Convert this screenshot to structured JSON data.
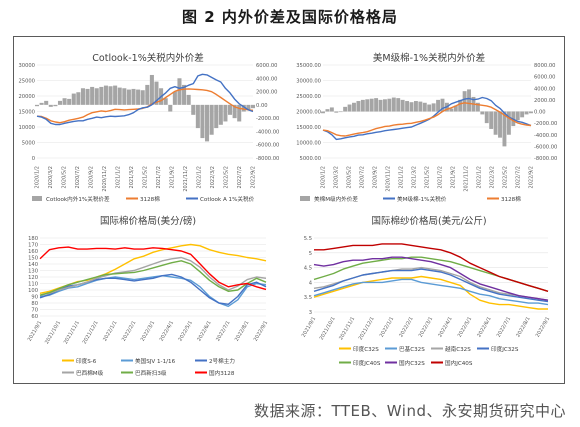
{
  "figure": {
    "title": "图 2  内外价差及国际价格格局",
    "source": "数据来源：TTEB、Wind、永安期货研究中心"
  },
  "colors": {
    "orange": "#ed7d31",
    "blue": "#4472c4",
    "gray": "#a5a5a5",
    "yellow": "#ffc000",
    "lightblue": "#5b9bd5",
    "green": "#70ad47",
    "darkred": "#c00000",
    "red": "#ff0000",
    "purple": "#7030a0"
  },
  "chart_data": [
    {
      "type": "line",
      "title": "Cotlook-1%关税内外价差",
      "x_labels": [
        "2020/1/2",
        "2020/3/2",
        "2020/5/2",
        "2020/7/2",
        "2020/9/2",
        "2020/11/2",
        "2021/1/2",
        "2021/3/2",
        "2021/5/2",
        "2021/7/2",
        "2021/9/2",
        "2021/11/2",
        "2022/1/2",
        "2022/3/2",
        "2022/5/2",
        "2022/7/2",
        "2022/9/2"
      ],
      "y_left": {
        "ticks": [
          "0",
          "5000",
          "10000",
          "15000",
          "20000",
          "25000",
          "30000"
        ],
        "range": [
          0,
          30000
        ]
      },
      "y_right": {
        "ticks": [
          "-8000.00",
          "-6000.00",
          "-4000.00",
          "-2000.00",
          "0.00",
          "2000.00",
          "4000.00",
          "6000.00"
        ],
        "range": [
          -8000,
          6000
        ]
      },
      "series": [
        {
          "name": "Cotlook内外1%关税价差",
          "kind": "area",
          "axis": "right",
          "color": "gray",
          "values": [
            -200,
            300,
            600,
            -300,
            -200,
            600,
            1000,
            900,
            1700,
            1900,
            2500,
            2400,
            2700,
            2500,
            2700,
            2900,
            2800,
            2900,
            2600,
            2500,
            2300,
            2400,
            2300,
            2200,
            3000,
            4500,
            3500,
            2500,
            1000,
            -1000,
            2000,
            4000,
            3000,
            1500,
            -1500,
            -3500,
            -5000,
            -5500,
            -4500,
            -3500,
            -3000,
            -2500,
            -1500,
            -2000,
            -2500,
            -1000,
            -800,
            -500
          ]
        },
        {
          "name": "3128棉",
          "kind": "line",
          "axis": "left",
          "color": "orange",
          "values": [
            13500,
            13400,
            12800,
            12000,
            11600,
            11400,
            11700,
            12200,
            12500,
            12800,
            13200,
            14000,
            14600,
            14900,
            15200,
            15000,
            15300,
            15700,
            15600,
            15500,
            15600,
            15700,
            15800,
            16000,
            16500,
            17500,
            18000,
            18500,
            19500,
            20500,
            21500,
            22000,
            22200,
            22300,
            22200,
            22100,
            22000,
            21800,
            21400,
            20500,
            19500,
            18500,
            17500,
            16500,
            16000,
            15800,
            15500,
            15400
          ]
        },
        {
          "name": "Cotlook A 1%关税价",
          "kind": "line",
          "axis": "left",
          "color": "blue",
          "values": [
            13500,
            13200,
            12500,
            11200,
            10800,
            10800,
            11200,
            11500,
            11800,
            12000,
            12000,
            12500,
            12800,
            13200,
            13000,
            13300,
            13500,
            13400,
            13500,
            13600,
            14000,
            14600,
            15600,
            16200,
            16400,
            17200,
            18500,
            19800,
            21000,
            22500,
            23000,
            22500,
            22800,
            23500,
            24000,
            26500,
            27000,
            26800,
            26000,
            25200,
            24500,
            22500,
            21000,
            19000,
            17500,
            16500,
            15500,
            15000
          ]
        }
      ]
    },
    {
      "type": "line",
      "title": "美M级棉-1%关税内外价差",
      "x_labels": [
        "2020/1/2",
        "2020/3/2",
        "2020/5/2",
        "2020/7/2",
        "2020/9/2",
        "2020/11/2",
        "2021/1/2",
        "2021/3/2",
        "2021/5/2",
        "2021/7/2",
        "2021/9/2",
        "2021/11/2",
        "2022/1/2",
        "2022/3/2",
        "2022/5/2",
        "2022/7/2",
        "2022/9/2"
      ],
      "y_left": {
        "ticks": [
          "5000.00",
          "10000.00",
          "15000.00",
          "20000.00",
          "25000.00",
          "30000.00",
          "35000.00"
        ],
        "range": [
          5000,
          35000
        ]
      },
      "y_right": {
        "ticks": [
          "-8000.00",
          "-6000.00",
          "-4000.00",
          "-2000.00",
          "0.00",
          "2000.00",
          "4000.00",
          "6000.00",
          "8000.00"
        ],
        "range": [
          -8000,
          8000
        ]
      },
      "series": [
        {
          "name": "美棉M级内外价差",
          "kind": "area",
          "axis": "right",
          "color": "gray",
          "values": [
            -300,
            400,
            700,
            -200,
            -100,
            800,
            1200,
            1500,
            1800,
            2000,
            2100,
            2200,
            2300,
            2000,
            2100,
            2200,
            2400,
            2300,
            2000,
            1800,
            1600,
            1800,
            1700,
            1500,
            1200,
            1400,
            2000,
            2200,
            1500,
            500,
            1000,
            2000,
            3500,
            3800,
            2500,
            1500,
            -500,
            -2000,
            -3000,
            -4000,
            -4500,
            -6000,
            -4000,
            -2500,
            -1500,
            -1000,
            -500,
            -300
          ]
        },
        {
          "name": "美M级棉-1%关税价",
          "kind": "line",
          "axis": "left",
          "color": "blue",
          "values": [
            14000,
            13500,
            12500,
            11000,
            11200,
            11500,
            11800,
            12000,
            12400,
            12500,
            12800,
            13000,
            13300,
            13500,
            13800,
            14000,
            14200,
            14400,
            14600,
            14800,
            15000,
            15600,
            16200,
            16800,
            17500,
            18500,
            19800,
            21000,
            21500,
            22500,
            23000,
            23500,
            24000,
            24200,
            23800,
            24000,
            24500,
            24200,
            23500,
            22000,
            21000,
            19500,
            18200,
            17500,
            16800,
            16500,
            16000,
            15500
          ]
        },
        {
          "name": "3128棉",
          "kind": "line",
          "axis": "left",
          "color": "orange",
          "values": [
            14000,
            13800,
            13200,
            12500,
            12200,
            12100,
            12400,
            12700,
            13000,
            13200,
            13500,
            14000,
            14500,
            14800,
            15200,
            15300,
            15600,
            15800,
            15900,
            16100,
            16200,
            16500,
            16800,
            17200,
            17700,
            18200,
            19000,
            20000,
            20700,
            21200,
            21800,
            22500,
            22800,
            22600,
            22400,
            22200,
            22000,
            21800,
            21400,
            20600,
            19800,
            18800,
            17900,
            17000,
            16300,
            15900,
            15600,
            15500
          ]
        }
      ]
    },
    {
      "type": "line",
      "title": "国际棉价格局(美分/磅)",
      "x_labels": [
        "2021/9/1",
        "2021/10/1",
        "2021/11/1",
        "2021/12/1",
        "2022/1/1",
        "2022/2/1",
        "2022/3/1",
        "2022/4/1",
        "2022/5/1",
        "2022/6/1",
        "2022/7/1",
        "2022/8/1",
        "2022/9/1"
      ],
      "y_left": {
        "ticks": [
          "60",
          "70",
          "80",
          "90",
          "100",
          "110",
          "120",
          "130",
          "140",
          "150",
          "160",
          "170",
          "180"
        ],
        "range": [
          60,
          180
        ]
      },
      "legend_position": "bottom",
      "series": [
        {
          "name": "印度S-6",
          "color": "yellow",
          "values": [
            95,
            98,
            103,
            108,
            113,
            115,
            120,
            125,
            132,
            140,
            148,
            152,
            158,
            162,
            165,
            168,
            170,
            168,
            162,
            158,
            155,
            153,
            150,
            148,
            145
          ]
        },
        {
          "name": "美国SJV 1-1/16",
          "color": "lightblue",
          "values": [
            90,
            92,
            98,
            103,
            105,
            110,
            115,
            118,
            120,
            118,
            116,
            118,
            120,
            122,
            120,
            118,
            115,
            105,
            90,
            80,
            75,
            85,
            105,
            110,
            108
          ]
        },
        {
          "name": "2号棉主力",
          "color": "blue",
          "values": [
            88,
            93,
            100,
            106,
            108,
            112,
            116,
            118,
            118,
            116,
            114,
            116,
            118,
            122,
            124,
            120,
            112,
            100,
            88,
            80,
            78,
            90,
            108,
            112,
            105
          ]
        },
        {
          "name": "巴西棉M级",
          "color": "gray",
          "values": [
            92,
            95,
            100,
            104,
            108,
            112,
            118,
            122,
            126,
            128,
            130,
            135,
            140,
            145,
            148,
            150,
            145,
            135,
            120,
            108,
            100,
            106,
            116,
            120,
            118
          ]
        },
        {
          "name": "巴西新扫3级",
          "color": "green",
          "values": [
            92,
            96,
            102,
            108,
            112,
            116,
            120,
            124,
            125,
            126,
            127,
            130,
            134,
            138,
            142,
            145,
            140,
            128,
            115,
            105,
            98,
            100,
            110,
            118,
            112
          ]
        },
        {
          "name": "国内3128",
          "color": "red",
          "values": [
            148,
            162,
            165,
            166,
            163,
            163,
            164,
            164,
            163,
            165,
            163,
            163,
            165,
            164,
            162,
            160,
            155,
            140,
            125,
            112,
            105,
            108,
            110,
            105,
            101
          ]
        }
      ]
    },
    {
      "type": "line",
      "title": "国际棉纱价格局(美元/公斤)",
      "x_labels": [
        "2021/9/1",
        "2021/10/1",
        "2021/11/1",
        "2021/12/1",
        "2022/1/1",
        "2022/2/1",
        "2022/3/1",
        "2022/4/1",
        "2022/5/1",
        "2022/6/1",
        "2022/7/1",
        "2022/8/1",
        "2022/9/1"
      ],
      "y_left": {
        "ticks": [
          "3",
          "3.5",
          "4",
          "4.5",
          "5",
          "5.5"
        ],
        "range": [
          3,
          5.5
        ]
      },
      "legend_position": "bottom",
      "series": [
        {
          "name": "印度C32S",
          "color": "yellow",
          "values": [
            3.5,
            3.6,
            3.7,
            3.8,
            3.9,
            4.0,
            4.05,
            4.1,
            4.15,
            4.15,
            4.15,
            4.2,
            4.15,
            4.1,
            4.0,
            3.9,
            3.6,
            3.4,
            3.3,
            3.25,
            3.25,
            3.2,
            3.15,
            3.1,
            3.1
          ]
        },
        {
          "name": "巴基C32S",
          "color": "lightblue",
          "values": [
            3.55,
            3.65,
            3.75,
            3.85,
            3.95,
            4.0,
            4.0,
            4.0,
            4.05,
            4.1,
            4.1,
            4.0,
            3.95,
            3.9,
            3.85,
            3.8,
            3.7,
            3.6,
            3.55,
            3.45,
            3.4,
            3.35,
            3.3,
            3.3,
            3.25
          ]
        },
        {
          "name": "越南C32S",
          "color": "gray",
          "values": [
            3.8,
            3.85,
            3.95,
            4.05,
            4.15,
            4.25,
            4.3,
            4.35,
            4.4,
            4.45,
            4.45,
            4.5,
            4.45,
            4.4,
            4.3,
            4.2,
            4.0,
            3.85,
            3.75,
            3.65,
            3.6,
            3.55,
            3.5,
            3.45,
            3.4
          ]
        },
        {
          "name": "印度JC32S",
          "color": "blue",
          "values": [
            3.7,
            3.8,
            3.9,
            4.05,
            4.15,
            4.25,
            4.3,
            4.35,
            4.4,
            4.4,
            4.4,
            4.45,
            4.4,
            4.35,
            4.25,
            4.1,
            3.95,
            3.8,
            3.7,
            3.6,
            3.55,
            3.5,
            3.45,
            3.4,
            3.35
          ]
        },
        {
          "name": "印度JC40S",
          "color": "green",
          "values": [
            4.1,
            4.2,
            4.3,
            4.45,
            4.55,
            4.65,
            4.7,
            4.75,
            4.8,
            4.8,
            4.85,
            4.85,
            4.8,
            4.75,
            4.7,
            4.6,
            4.5,
            4.4,
            4.3,
            4.2,
            4.1,
            4.0,
            3.9,
            3.8,
            3.7
          ]
        },
        {
          "name": "国内C32S",
          "color": "purple",
          "values": [
            4.6,
            4.55,
            4.6,
            4.7,
            4.75,
            4.75,
            4.8,
            4.8,
            4.85,
            4.85,
            4.8,
            4.75,
            4.7,
            4.6,
            4.5,
            4.3,
            4.1,
            3.95,
            3.85,
            3.75,
            3.65,
            3.55,
            3.5,
            3.45,
            3.4
          ]
        },
        {
          "name": "国内JC40S",
          "color": "darkred",
          "values": [
            5.1,
            5.1,
            5.15,
            5.2,
            5.25,
            5.25,
            5.25,
            5.3,
            5.3,
            5.3,
            5.25,
            5.2,
            5.15,
            5.1,
            5.0,
            4.85,
            4.65,
            4.5,
            4.35,
            4.2,
            4.1,
            4.0,
            3.9,
            3.8,
            3.7
          ]
        }
      ]
    }
  ]
}
